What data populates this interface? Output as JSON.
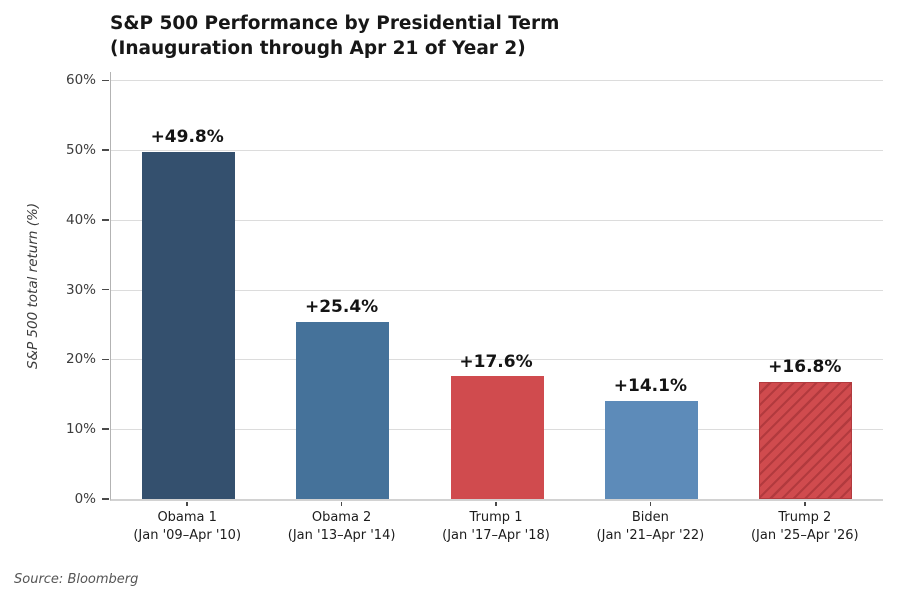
{
  "header": {
    "title_line1": "S&P 500 Performance by Presidential Term",
    "title_line2": "(Inauguration through Apr 21 of Year 2)"
  },
  "footer": {
    "source": "Source: Bloomberg"
  },
  "chart_data": {
    "type": "bar",
    "title": "S&P 500 Performance by Presidential Term (Inauguration through Apr 21 of Year 2)",
    "xlabel": "",
    "ylabel": "S&P 500 total return (%)",
    "ylim": [
      0,
      61.2
    ],
    "grid": "horizontal",
    "legend": "none",
    "background": "#ffffff",
    "gridline_color": "#dcdcdc",
    "yticks": [
      {
        "value": 0,
        "label": "0%"
      },
      {
        "value": 10,
        "label": "10%"
      },
      {
        "value": 20,
        "label": "20%"
      },
      {
        "value": 30,
        "label": "30%"
      },
      {
        "value": 40,
        "label": "40%"
      },
      {
        "value": 50,
        "label": "50%"
      },
      {
        "value": 60,
        "label": "60%"
      }
    ],
    "bars": [
      {
        "category": "Obama 1",
        "period": "(Jan '09–Apr '10)",
        "value": 49.8,
        "label": "+49.8%",
        "color": "#34506e",
        "hatch": false
      },
      {
        "category": "Obama 2",
        "period": "(Jan '13–Apr '14)",
        "value": 25.4,
        "label": "+25.4%",
        "color": "#45729a",
        "hatch": false
      },
      {
        "category": "Trump 1",
        "period": "(Jan '17–Apr '18)",
        "value": 17.6,
        "label": "+17.6%",
        "color": "#d04b4e",
        "hatch": false
      },
      {
        "category": "Biden",
        "period": "(Jan '21–Apr '22)",
        "value": 14.1,
        "label": "+14.1%",
        "color": "#5d8bb9",
        "hatch": false
      },
      {
        "category": "Trump 2",
        "period": "(Jan '25–Apr '26)",
        "value": 16.8,
        "label": "+16.8%",
        "color": "#d04b4e",
        "hatch": true,
        "hatch_color": "#b23a3e"
      }
    ],
    "source": "Source: Bloomberg"
  }
}
